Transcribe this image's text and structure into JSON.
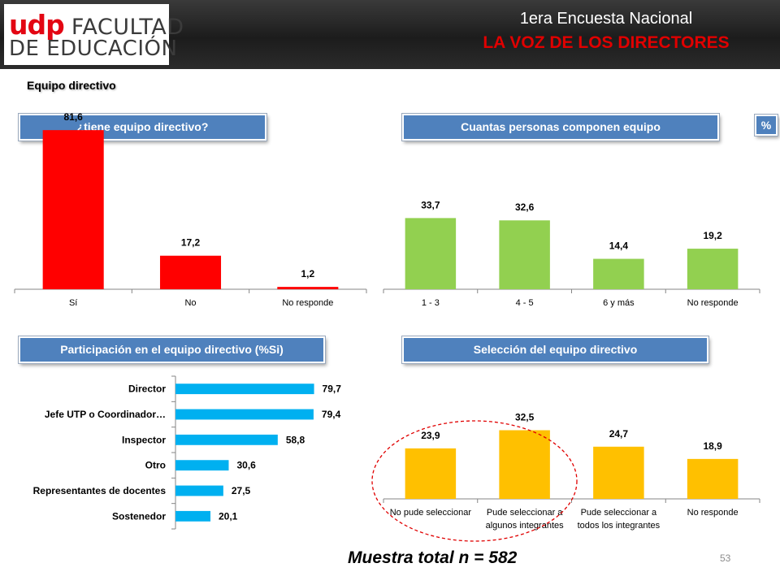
{
  "header": {
    "logo_brand": "udp",
    "logo_line1": "FACULTAD",
    "logo_line2": "DE EDUCACIÓN",
    "title_line1": "1era Encuesta Nacional",
    "title_line2": "LA VOZ DE LOS DIRECTORES"
  },
  "section_title": "Equipo directivo",
  "percent_badge": "%",
  "sample_note": "Muestra total n = 582",
  "page_number": "53",
  "colors": {
    "header_bar": "#4f81bd",
    "red": "#ff0000",
    "green": "#92d050",
    "blue": "#00b0f0",
    "yellow": "#ffc000",
    "highlight_ellipse": "#e00000"
  },
  "chart_data": [
    {
      "type": "bar",
      "title": "¿tiene equipo directivo?",
      "categories": [
        "Sí",
        "No",
        "No responde"
      ],
      "values": [
        81.6,
        17.2,
        1.2
      ],
      "labels": [
        "81,6",
        "17,2",
        "1,2"
      ],
      "color": "#ff0000",
      "ylim": [
        0,
        90
      ]
    },
    {
      "type": "bar",
      "title": "Cuantas personas componen equipo",
      "categories": [
        "1 - 3",
        "4 - 5",
        "6 y más",
        "No responde"
      ],
      "values": [
        33.7,
        32.6,
        14.4,
        19.2
      ],
      "labels": [
        "33,7",
        "32,6",
        "14,4",
        "19,2"
      ],
      "color": "#92d050",
      "ylim": [
        0,
        80
      ]
    },
    {
      "type": "bar",
      "orientation": "horizontal",
      "title": "Participación en el equipo directivo (%Si)",
      "categories": [
        "Director",
        "Jefe UTP o Coordinador…",
        "Inspector",
        "Otro",
        "Representantes de docentes",
        "Sostenedor"
      ],
      "values": [
        79.7,
        79.4,
        58.8,
        30.6,
        27.5,
        20.1
      ],
      "labels": [
        "79,7",
        "79,4",
        "58,8",
        "30,6",
        "27,5",
        "20,1"
      ],
      "color": "#00b0f0",
      "xlim": [
        0,
        100
      ]
    },
    {
      "type": "bar",
      "title": "Selección del equipo directivo",
      "categories": [
        "No pude seleccionar",
        "Pude seleccionar a algunos integrantes",
        "Pude seleccionar a todos los integrantes",
        "No responde"
      ],
      "category_lines": [
        [
          "No pude seleccionar"
        ],
        [
          "Pude seleccionar a",
          "algunos integrantes"
        ],
        [
          "Pude seleccionar a",
          "todos los integrantes"
        ],
        [
          "No responde"
        ]
      ],
      "values": [
        23.9,
        32.5,
        24.7,
        18.9
      ],
      "labels": [
        "23,9",
        "32,5",
        "24,7",
        "18,9"
      ],
      "color": "#ffc000",
      "ylim": [
        0,
        80
      ],
      "highlight": "ellipse around first two categories"
    }
  ]
}
